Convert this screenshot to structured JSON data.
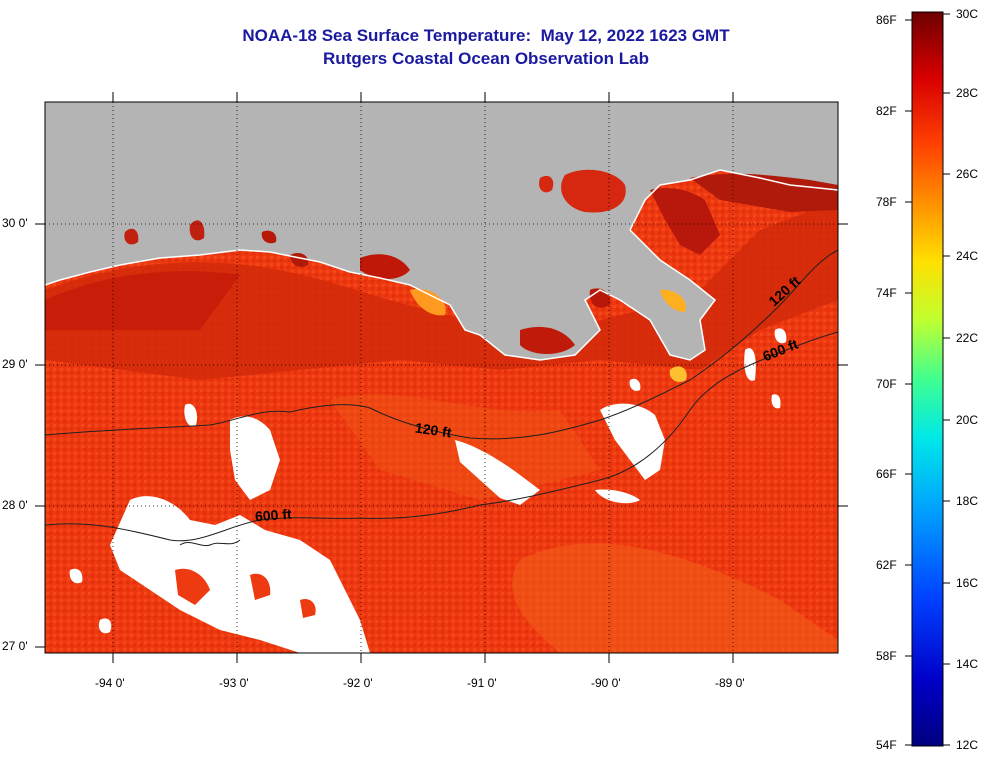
{
  "title_line1": "NOAA-18 Sea Surface Temperature:  May 12, 2022 1623 GMT",
  "title_line2": "Rutgers Coastal Ocean Observation Lab",
  "map": {
    "lat_labels": [
      "30 0'",
      "29 0'",
      "28 0'",
      "27 0'"
    ],
    "lon_labels": [
      "-94 0'",
      "-93 0'",
      "-92 0'",
      "-91 0'",
      "-90 0'",
      "-89 0'"
    ],
    "contours": [
      {
        "label": "120 ft"
      },
      {
        "label": "600 ft"
      },
      {
        "label": "120 ft"
      },
      {
        "label": "600 ft"
      }
    ],
    "colors": {
      "land": "#b4b4b4",
      "cloud": "#ffffff",
      "water_main": "#f03a0c",
      "water_warm": "#cc1a08",
      "water_cool": "#f25a12"
    }
  },
  "colorbar": {
    "fahrenheit_labels": [
      "86F",
      "82F",
      "78F",
      "74F",
      "70F",
      "66F",
      "62F",
      "58F",
      "54F"
    ],
    "celsius_labels": [
      "30C",
      "28C",
      "26C",
      "24C",
      "22C",
      "20C",
      "18C",
      "16C",
      "14C",
      "12C"
    ],
    "colors": [
      "#7a0000",
      "#cc0000",
      "#ff3300",
      "#ff8800",
      "#ffd000",
      "#d8ff20",
      "#60ff80",
      "#00e0e0",
      "#0090ff",
      "#0030ff",
      "#0000c0",
      "#000080"
    ]
  }
}
